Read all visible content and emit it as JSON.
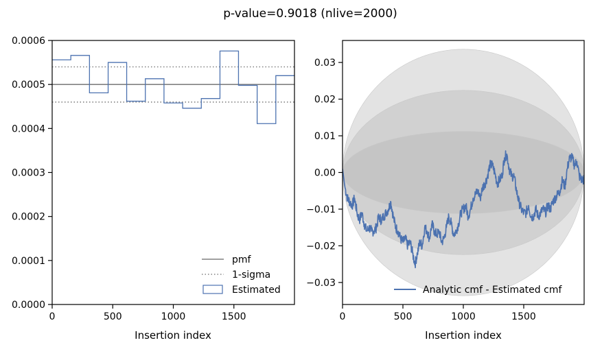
{
  "title": "p-value=0.9018 (nlive=2000)",
  "chart_data": [
    {
      "type": "histogram",
      "xlabel": "Insertion index",
      "ylabel": "",
      "xlim": [
        0,
        2000
      ],
      "ylim": [
        0,
        0.0006
      ],
      "xticks": [
        0,
        500,
        1000,
        1500
      ],
      "xtick_labels": [
        "0",
        "500",
        "1000",
        "1500"
      ],
      "yticks": [
        0,
        0.0001,
        0.0002,
        0.0003,
        0.0004,
        0.0005,
        0.0006
      ],
      "ytick_labels": [
        "0.0000",
        "0.0001",
        "0.0002",
        "0.0003",
        "0.0004",
        "0.0005",
        "0.0006"
      ],
      "pmf": 0.0005,
      "sigma_upper": 0.00054,
      "sigma_lower": 0.00046,
      "bin_edges": [
        0,
        154,
        308,
        462,
        615,
        769,
        923,
        1077,
        1231,
        1385,
        1538,
        1692,
        1846,
        2000
      ],
      "bin_values": [
        0.000556,
        0.000566,
        0.000481,
        0.00055,
        0.000462,
        0.000513,
        0.000458,
        0.000446,
        0.000468,
        0.000576,
        0.000498,
        0.000411,
        0.00052
      ],
      "legend": {
        "position": "lower right",
        "entries": [
          {
            "label": "pmf",
            "style": "solid",
            "color": "#808080"
          },
          {
            "label": "1-sigma",
            "style": "dotted",
            "color": "#808080"
          },
          {
            "label": "Estimated",
            "style": "box",
            "color": "#4c72b0"
          }
        ]
      }
    },
    {
      "type": "line",
      "xlabel": "Insertion index",
      "ylabel": "",
      "xlim": [
        0,
        2000
      ],
      "ylim": [
        -0.036,
        0.036
      ],
      "xticks": [
        0,
        500,
        1000,
        1500
      ],
      "xtick_labels": [
        "0",
        "500",
        "1000",
        "1500"
      ],
      "yticks": [
        -0.03,
        -0.02,
        -0.01,
        0.0,
        0.01,
        0.02,
        0.03
      ],
      "ytick_labels": [
        "−0.03",
        "−0.02",
        "−0.01",
        "0.00",
        "0.01",
        "0.02",
        "0.03"
      ],
      "bands_sigma": [
        1,
        2,
        3
      ],
      "band_peak_halfwidth": [
        0.0112,
        0.0224,
        0.0336
      ],
      "band_color": "#b0b0b0",
      "series": [
        {
          "name": "Analytic cmf - Estimated cmf",
          "color": "#4c72b0",
          "x": [
            0,
            20,
            40,
            60,
            80,
            100,
            120,
            140,
            160,
            180,
            200,
            220,
            240,
            260,
            280,
            300,
            320,
            340,
            360,
            380,
            400,
            420,
            440,
            460,
            480,
            500,
            520,
            540,
            560,
            580,
            600,
            620,
            640,
            660,
            680,
            700,
            720,
            740,
            760,
            780,
            800,
            820,
            840,
            860,
            880,
            900,
            920,
            940,
            960,
            980,
            1000,
            1020,
            1040,
            1060,
            1080,
            1100,
            1120,
            1140,
            1160,
            1180,
            1200,
            1220,
            1240,
            1260,
            1280,
            1300,
            1320,
            1340,
            1360,
            1380,
            1400,
            1420,
            1440,
            1460,
            1480,
            1500,
            1520,
            1540,
            1560,
            1580,
            1600,
            1620,
            1640,
            1660,
            1680,
            1700,
            1720,
            1740,
            1760,
            1780,
            1800,
            1820,
            1840,
            1860,
            1880,
            1900,
            1920,
            1940,
            1960,
            1980,
            2000
          ],
          "y": [
            0.001,
            -0.004,
            -0.007,
            -0.008,
            -0.009,
            -0.007,
            -0.011,
            -0.013,
            -0.011,
            -0.014,
            -0.016,
            -0.015,
            -0.016,
            -0.016,
            -0.015,
            -0.012,
            -0.013,
            -0.012,
            -0.011,
            -0.01,
            -0.008,
            -0.012,
            -0.015,
            -0.016,
            -0.018,
            -0.019,
            -0.018,
            -0.02,
            -0.019,
            -0.022,
            -0.025,
            -0.022,
            -0.019,
            -0.02,
            -0.015,
            -0.016,
            -0.018,
            -0.014,
            -0.016,
            -0.017,
            -0.016,
            -0.019,
            -0.018,
            -0.015,
            -0.012,
            -0.014,
            -0.017,
            -0.016,
            -0.014,
            -0.011,
            -0.01,
            -0.009,
            -0.012,
            -0.01,
            -0.007,
            -0.006,
            -0.005,
            -0.007,
            -0.004,
            -0.003,
            -0.001,
            0.002,
            0.002,
            0.0,
            -0.003,
            -0.002,
            -0.001,
            0.004,
            0.005,
            0.001,
            -0.001,
            -0.001,
            -0.005,
            -0.008,
            -0.01,
            -0.011,
            -0.011,
            -0.009,
            -0.012,
            -0.012,
            -0.01,
            -0.012,
            -0.011,
            -0.01,
            -0.011,
            -0.009,
            -0.01,
            -0.008,
            -0.007,
            -0.006,
            -0.005,
            -0.002,
            -0.004,
            0.001,
            0.004,
            0.004,
            0.002,
            0.003,
            -0.001,
            -0.002,
            -0.002
          ]
        }
      ],
      "legend": {
        "position": "lower right",
        "entries": [
          {
            "label": "Analytic cmf - Estimated cmf",
            "style": "solid",
            "color": "#4c72b0"
          }
        ]
      }
    }
  ]
}
